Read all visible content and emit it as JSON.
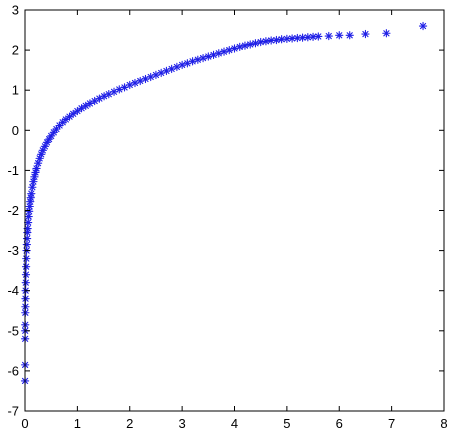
{
  "chart_data": {
    "type": "scatter",
    "title": "",
    "xlabel": "",
    "ylabel": "",
    "xlim": [
      0,
      8
    ],
    "ylim": [
      -7,
      3
    ],
    "x_ticks": [
      "0",
      "1",
      "2",
      "3",
      "4",
      "5",
      "6",
      "7",
      "8"
    ],
    "y_ticks": [
      "3",
      "2",
      "1",
      "0",
      "-1",
      "-2",
      "-3",
      "-4",
      "-5",
      "-6",
      "-7"
    ],
    "grid": false,
    "legend": "none",
    "marker": "asterisk",
    "marker_color": "#1f1fe6",
    "series": [
      {
        "x": [
          0.001,
          0.002,
          0.003,
          0.004,
          0.005,
          0.006,
          0.008,
          0.01,
          0.012,
          0.015,
          0.018,
          0.021,
          0.025,
          0.03,
          0.035,
          0.04,
          0.045,
          0.05,
          0.06,
          0.07,
          0.08,
          0.09,
          0.1,
          0.11,
          0.12,
          0.14,
          0.16,
          0.18,
          0.2,
          0.22,
          0.25,
          0.28,
          0.31,
          0.34,
          0.38,
          0.42,
          0.46,
          0.5,
          0.55,
          0.6,
          0.66,
          0.72,
          0.78,
          0.85,
          0.92,
          1.0,
          1.08,
          1.16,
          1.24,
          1.33,
          1.42,
          1.51,
          1.6,
          1.7,
          1.8,
          1.9,
          2.0,
          2.1,
          2.2,
          2.3,
          2.4,
          2.5,
          2.6,
          2.7,
          2.8,
          2.9,
          3.0,
          3.1,
          3.2,
          3.3,
          3.4,
          3.5,
          3.6,
          3.7,
          3.8,
          3.9,
          4.0,
          4.1,
          4.2,
          4.3,
          4.4,
          4.5,
          4.6,
          4.7,
          4.8,
          4.9,
          5.0,
          5.1,
          5.2,
          5.3,
          5.4,
          5.5,
          5.6,
          5.8,
          6.0,
          6.2,
          6.5,
          6.9,
          7.6
        ],
        "y": [
          -6.25,
          -5.85,
          -5.2,
          -5.0,
          -4.85,
          -4.55,
          -4.4,
          -4.2,
          -4.0,
          -3.8,
          -3.6,
          -3.4,
          -3.2,
          -3.0,
          -2.85,
          -2.7,
          -2.55,
          -2.45,
          -2.3,
          -2.15,
          -2.02,
          -1.9,
          -1.78,
          -1.68,
          -1.58,
          -1.42,
          -1.28,
          -1.16,
          -1.05,
          -0.95,
          -0.82,
          -0.7,
          -0.6,
          -0.5,
          -0.4,
          -0.3,
          -0.22,
          -0.14,
          -0.05,
          0.03,
          0.12,
          0.2,
          0.27,
          0.34,
          0.41,
          0.48,
          0.55,
          0.61,
          0.67,
          0.73,
          0.79,
          0.85,
          0.9,
          0.96,
          1.02,
          1.07,
          1.13,
          1.18,
          1.23,
          1.28,
          1.33,
          1.38,
          1.43,
          1.48,
          1.53,
          1.58,
          1.63,
          1.67,
          1.72,
          1.76,
          1.8,
          1.84,
          1.88,
          1.92,
          1.96,
          2.0,
          2.04,
          2.08,
          2.11,
          2.14,
          2.17,
          2.2,
          2.22,
          2.24,
          2.25,
          2.27,
          2.28,
          2.29,
          2.3,
          2.31,
          2.32,
          2.33,
          2.34,
          2.35,
          2.37,
          2.37,
          2.4,
          2.42,
          2.6
        ]
      }
    ]
  }
}
